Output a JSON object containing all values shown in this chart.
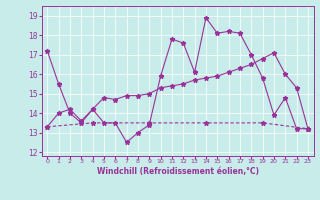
{
  "xlabel": "Windchill (Refroidissement éolien,°C)",
  "bg_color": "#c8ecea",
  "line_color": "#993399",
  "xlim": [
    -0.5,
    23.5
  ],
  "ylim": [
    11.8,
    19.5
  ],
  "yticks": [
    12,
    13,
    14,
    15,
    16,
    17,
    18,
    19
  ],
  "xticks": [
    0,
    1,
    2,
    3,
    4,
    5,
    6,
    7,
    8,
    9,
    10,
    11,
    12,
    13,
    14,
    15,
    16,
    17,
    18,
    19,
    20,
    21,
    22,
    23
  ],
  "s1_x": [
    0,
    1,
    2,
    3,
    4,
    5,
    6,
    7,
    8,
    9,
    10,
    11,
    12,
    13,
    14,
    15,
    16,
    17,
    18,
    19,
    20,
    21,
    22,
    23
  ],
  "s1_y": [
    17.2,
    15.5,
    14.0,
    13.5,
    14.2,
    13.5,
    13.5,
    12.5,
    13.0,
    13.4,
    15.9,
    17.8,
    17.6,
    16.1,
    18.9,
    18.1,
    18.2,
    18.1,
    17.0,
    15.8,
    13.9,
    14.8,
    13.2,
    13.2
  ],
  "s2_x": [
    0,
    4,
    9,
    14,
    19,
    23
  ],
  "s2_y": [
    13.3,
    13.5,
    13.5,
    13.5,
    13.5,
    13.2
  ],
  "s3_x": [
    0,
    1,
    2,
    3,
    4,
    5,
    6,
    7,
    8,
    9,
    10,
    11,
    12,
    13,
    14,
    15,
    16,
    17,
    18,
    19,
    20,
    21,
    22,
    23
  ],
  "s3_y": [
    13.3,
    14.0,
    14.2,
    13.6,
    14.2,
    14.8,
    14.7,
    14.9,
    14.9,
    15.0,
    15.3,
    15.4,
    15.5,
    15.7,
    15.8,
    15.9,
    16.1,
    16.3,
    16.5,
    16.8,
    17.1,
    16.0,
    15.3,
    13.2
  ]
}
